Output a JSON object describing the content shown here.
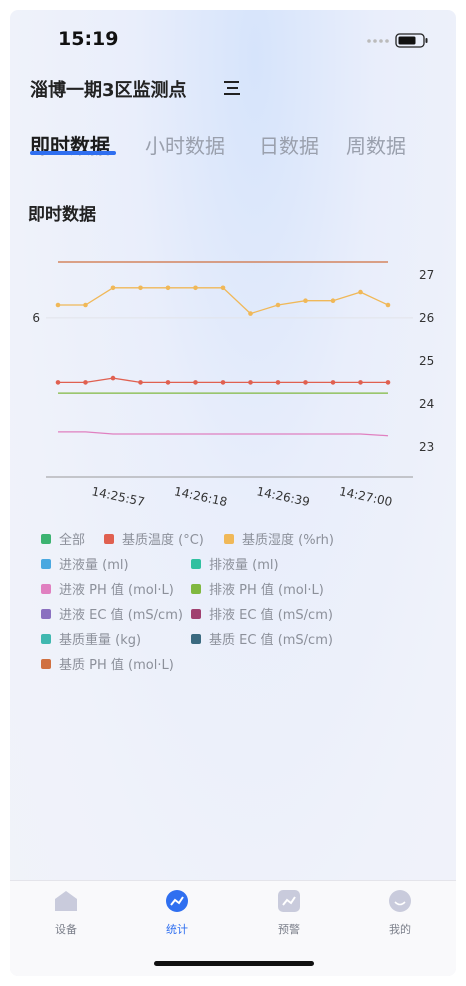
{
  "status_bar": {
    "time": "15:19"
  },
  "header": {
    "title": "淄博一期3区监测点"
  },
  "tabs": [
    "即时数据",
    "小时数据",
    "日数据",
    "周数据"
  ],
  "section_title": "即时数据",
  "chart_data": {
    "type": "line",
    "categories": [
      null,
      null,
      "14:25:57",
      null,
      null,
      "14:26:18",
      null,
      null,
      "14:26:39",
      null,
      null,
      "14:27:00",
      null
    ],
    "ylim": [
      2.3,
      7.3
    ],
    "yticks": [
      6
    ],
    "y2lim": [
      22.3,
      27.3
    ],
    "y2ticks": [
      23,
      24,
      25,
      26,
      27
    ],
    "series": [
      {
        "name": "全部",
        "color": "#3cb371"
      },
      {
        "name": "基质温度 (°C)",
        "color": "#e06050",
        "axis": "y2",
        "markers": true,
        "values": [
          24.5,
          24.5,
          24.6,
          24.5,
          24.5,
          24.5,
          24.5,
          24.5,
          24.5,
          24.5,
          24.5,
          24.5,
          24.5
        ]
      },
      {
        "name": "基质湿度 (%rh)",
        "color": "#f0b858",
        "axis": "y2",
        "markers": true,
        "values": [
          26.3,
          26.3,
          26.7,
          26.7,
          26.7,
          26.7,
          26.7,
          26.1,
          26.3,
          26.4,
          26.4,
          26.6,
          26.3
        ]
      },
      {
        "name": "进液量 (ml)",
        "color": "#4aa8e0"
      },
      {
        "name": "排液量 (ml)",
        "color": "#30c0a0"
      },
      {
        "name": "进液 PH 值 (mol·L)",
        "color": "#e080c0",
        "axis": "y2",
        "values": [
          23.35,
          23.35,
          23.3,
          23.3,
          23.3,
          23.3,
          23.3,
          23.3,
          23.3,
          23.3,
          23.3,
          23.3,
          23.26
        ]
      },
      {
        "name": "排液 PH 值 (mol·L)",
        "color": "#80b840",
        "axis": "y2",
        "values": [
          24.25,
          24.25,
          24.25,
          24.25,
          24.25,
          24.25,
          24.25,
          24.25,
          24.25,
          24.25,
          24.25,
          24.25,
          24.25
        ]
      },
      {
        "name": "进液 EC 值 (mS/cm)",
        "color": "#8a70c0"
      },
      {
        "name": "排液 EC 值 (mS/cm)",
        "color": "#a04070"
      },
      {
        "name": "基质重量 (kg)",
        "color": "#40b8b0"
      },
      {
        "name": "基质 EC 值 (mS/cm)",
        "color": "#3a6a80"
      },
      {
        "name": "基质 PH 值 (mol·L)",
        "color": "#d07040",
        "axis": "y2",
        "values": [
          27.3,
          27.3,
          27.3,
          27.3,
          27.3,
          27.3,
          27.3,
          27.3,
          27.3,
          27.3,
          27.3,
          27.3,
          27.3
        ]
      }
    ]
  },
  "nav": [
    {
      "label": "设备",
      "active": false
    },
    {
      "label": "统计",
      "active": true
    },
    {
      "label": "预警",
      "active": false
    },
    {
      "label": "我的",
      "active": false
    }
  ]
}
